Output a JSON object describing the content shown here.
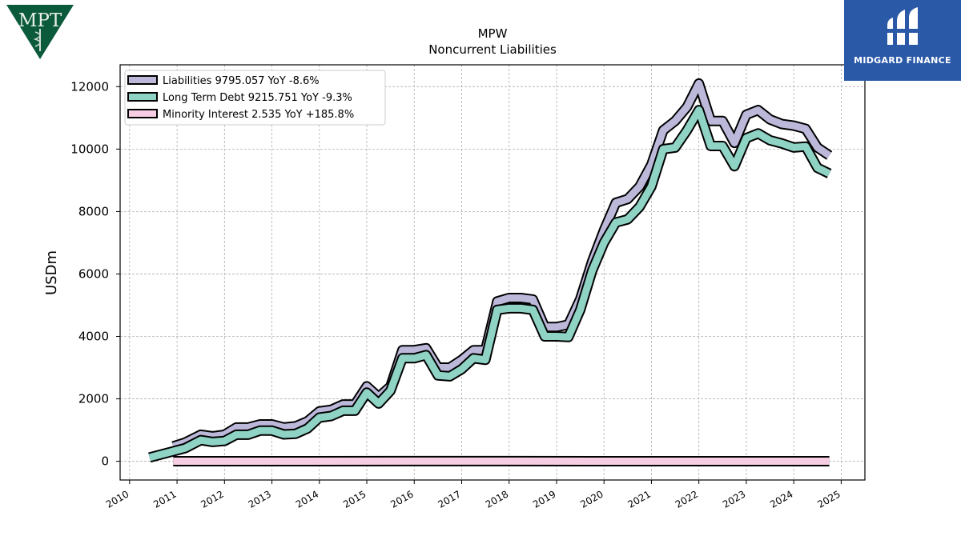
{
  "company_logo": {
    "text": "MPT",
    "color": "#0c5a3c"
  },
  "brand_logo": {
    "text": "MIDGARD FINANCE",
    "color": "#2a59a8"
  },
  "chart_data": {
    "type": "line",
    "title": "MPW",
    "subtitle": "Noncurrent  Liabilities",
    "xlabel": "",
    "ylabel": "USDm",
    "xlim": [
      2009.8,
      2025.5
    ],
    "ylim": [
      -600,
      12700
    ],
    "x_ticks": [
      "2010",
      "2011",
      "2012",
      "2013",
      "2014",
      "2015",
      "2016",
      "2017",
      "2018",
      "2019",
      "2020",
      "2021",
      "2022",
      "2023",
      "2024",
      "2025"
    ],
    "y_ticks": [
      0,
      2000,
      4000,
      6000,
      8000,
      10000,
      12000
    ],
    "grid": true,
    "legend_position": "top-left",
    "series": [
      {
        "name": "Liabilities",
        "legend_label": "Liabilities  9795.057 YoY -8.6%",
        "color": "#bcb8da",
        "x": [
          2010.92,
          2011.17,
          2011.5,
          2011.75,
          2012.0,
          2012.25,
          2012.5,
          2012.75,
          2013.0,
          2013.25,
          2013.5,
          2013.75,
          2014.0,
          2014.25,
          2014.5,
          2014.75,
          2015.0,
          2015.25,
          2015.5,
          2015.75,
          2016.0,
          2016.25,
          2016.5,
          2016.75,
          2017.0,
          2017.25,
          2017.5,
          2017.75,
          2018.0,
          2018.25,
          2018.5,
          2018.75,
          2019.0,
          2019.25,
          2019.5,
          2019.75,
          2020.0,
          2020.25,
          2020.5,
          2020.75,
          2021.0,
          2021.25,
          2021.5,
          2021.75,
          2022.0,
          2022.25,
          2022.5,
          2022.75,
          2023.0,
          2023.25,
          2023.5,
          2023.75,
          2024.0,
          2024.25,
          2024.5,
          2024.75
        ],
        "values": [
          480,
          600,
          850,
          800,
          850,
          1080,
          1080,
          1180,
          1180,
          1080,
          1120,
          1280,
          1600,
          1650,
          1820,
          1820,
          2400,
          2060,
          2400,
          3560,
          3560,
          3620,
          3000,
          3000,
          3250,
          3560,
          3560,
          5120,
          5230,
          5230,
          5180,
          4300,
          4300,
          4380,
          5200,
          6400,
          7400,
          8280,
          8400,
          8800,
          9500,
          10600,
          10900,
          11350,
          12100,
          10900,
          10900,
          10200,
          11100,
          11250,
          10950,
          10800,
          10750,
          10650,
          10050,
          9795
        ]
      },
      {
        "name": "Long Term Debt",
        "legend_label": "Long Term Debt  9215.751 YoY -9.3%",
        "color": "#8fd3c5",
        "x": [
          2010.42,
          2010.92,
          2011.17,
          2011.5,
          2011.75,
          2012.0,
          2012.25,
          2012.5,
          2012.75,
          2013.0,
          2013.25,
          2013.5,
          2013.75,
          2014.0,
          2014.25,
          2014.5,
          2014.75,
          2015.0,
          2015.25,
          2015.5,
          2015.75,
          2016.0,
          2016.25,
          2016.5,
          2016.75,
          2017.0,
          2017.25,
          2017.5,
          2017.75,
          2018.0,
          2018.25,
          2018.5,
          2018.75,
          2019.0,
          2019.25,
          2019.5,
          2019.75,
          2020.0,
          2020.25,
          2020.5,
          2020.75,
          2021.0,
          2021.25,
          2021.5,
          2021.75,
          2022.0,
          2022.25,
          2022.5,
          2022.75,
          2023.0,
          2023.25,
          2023.5,
          2023.75,
          2024.0,
          2024.25,
          2024.5,
          2024.75
        ],
        "values": [
          120,
          320,
          420,
          680,
          620,
          650,
          850,
          850,
          980,
          980,
          860,
          880,
          1050,
          1400,
          1450,
          1620,
          1620,
          2200,
          1850,
          2260,
          3300,
          3300,
          3400,
          2750,
          2720,
          2950,
          3300,
          3250,
          4850,
          4900,
          4900,
          4850,
          4000,
          4000,
          3980,
          4850,
          6100,
          7000,
          7650,
          7750,
          8150,
          8800,
          10000,
          10050,
          10600,
          11250,
          10100,
          10100,
          9450,
          10350,
          10500,
          10280,
          10180,
          10050,
          10080,
          9400,
          9215.751
        ]
      },
      {
        "name": "Minority Interest",
        "legend_label": "Minority Interest  2.535 YoY +185.8%",
        "color": "#f7cde4",
        "x": [
          2010.92,
          2017.5,
          2019.75,
          2020.0,
          2024.75
        ],
        "values": [
          1,
          5,
          2,
          1,
          2.535
        ]
      }
    ]
  }
}
